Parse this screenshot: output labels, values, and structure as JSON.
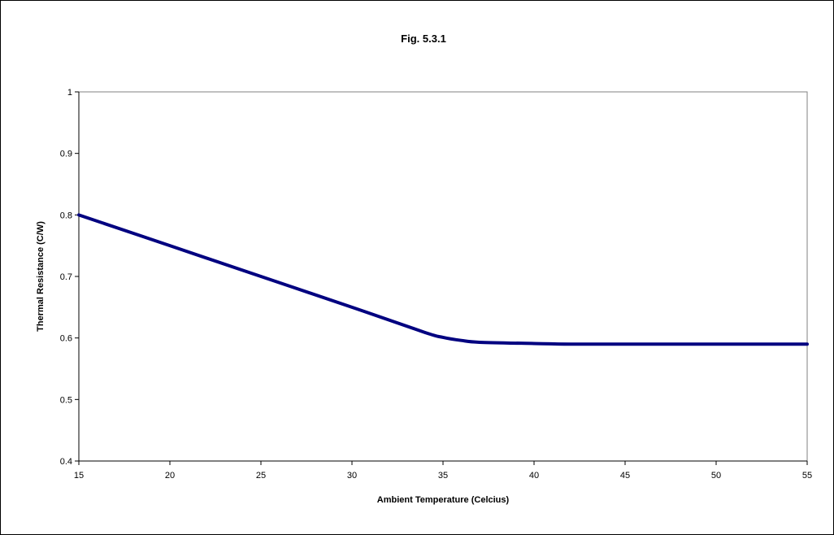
{
  "chart_data": {
    "type": "line",
    "title": "Fig. 5.3.1",
    "xlabel": "Ambient Temperature (Celcius)",
    "ylabel": "Thermal Resistance (C/W)",
    "xlim": [
      15,
      55
    ],
    "ylim": [
      0.4,
      1
    ],
    "xticks": [
      "15",
      "20",
      "25",
      "30",
      "35",
      "40",
      "45",
      "50",
      "55"
    ],
    "yticks": [
      "0.4",
      "0.5",
      "0.6",
      "0.7",
      "0.8",
      "0.9",
      "1"
    ],
    "grid": false,
    "legend": "none",
    "series": [
      {
        "color": "#000080",
        "x": [
          15,
          20,
          25,
          30,
          34,
          35,
          36,
          37,
          40,
          42,
          45,
          50,
          55
        ],
        "y": [
          0.8,
          0.75,
          0.7,
          0.65,
          0.609,
          0.601,
          0.596,
          0.593,
          0.591,
          0.59,
          0.59,
          0.59,
          0.59
        ]
      }
    ]
  }
}
